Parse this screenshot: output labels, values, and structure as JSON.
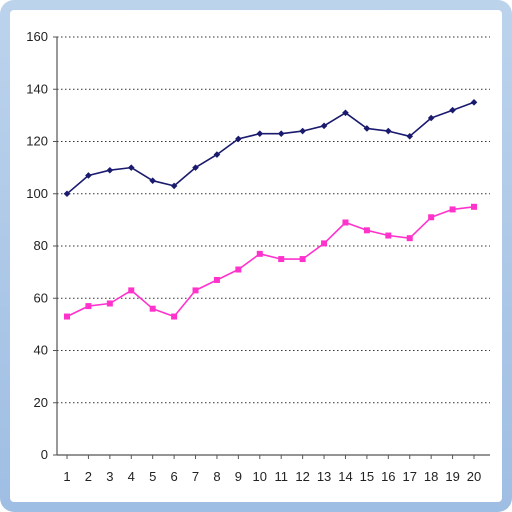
{
  "chart_data": {
    "type": "line",
    "title": "",
    "xlabel": "",
    "ylabel": "",
    "x": [
      1,
      2,
      3,
      4,
      5,
      6,
      7,
      8,
      9,
      10,
      11,
      12,
      13,
      14,
      15,
      16,
      17,
      18,
      19,
      20
    ],
    "x_tick_labels": [
      "1",
      "2",
      "3",
      "4",
      "5",
      "6",
      "7",
      "8",
      "9",
      "10",
      "11",
      "12",
      "13",
      "14",
      "15",
      "16",
      "17",
      "18",
      "19",
      "20"
    ],
    "ylim": [
      0,
      160
    ],
    "y_ticks": [
      0,
      20,
      40,
      60,
      80,
      100,
      120,
      140,
      160
    ],
    "y_tick_labels": [
      "0",
      "20",
      "40",
      "60",
      "80",
      "100",
      "120",
      "140",
      "160"
    ],
    "grid": "horizontal dotted",
    "series": [
      {
        "color": "#1a1a6e",
        "values": [
          100,
          107,
          109,
          110,
          105,
          103,
          110,
          115,
          121,
          123,
          123,
          124,
          126,
          131,
          125,
          124,
          122,
          129,
          132,
          135
        ]
      },
      {
        "color": "#ff33cc",
        "values": [
          53,
          57,
          58,
          63,
          56,
          53,
          63,
          67,
          71,
          77,
          75,
          75,
          81,
          89,
          86,
          84,
          83,
          91,
          94,
          95
        ]
      }
    ]
  }
}
